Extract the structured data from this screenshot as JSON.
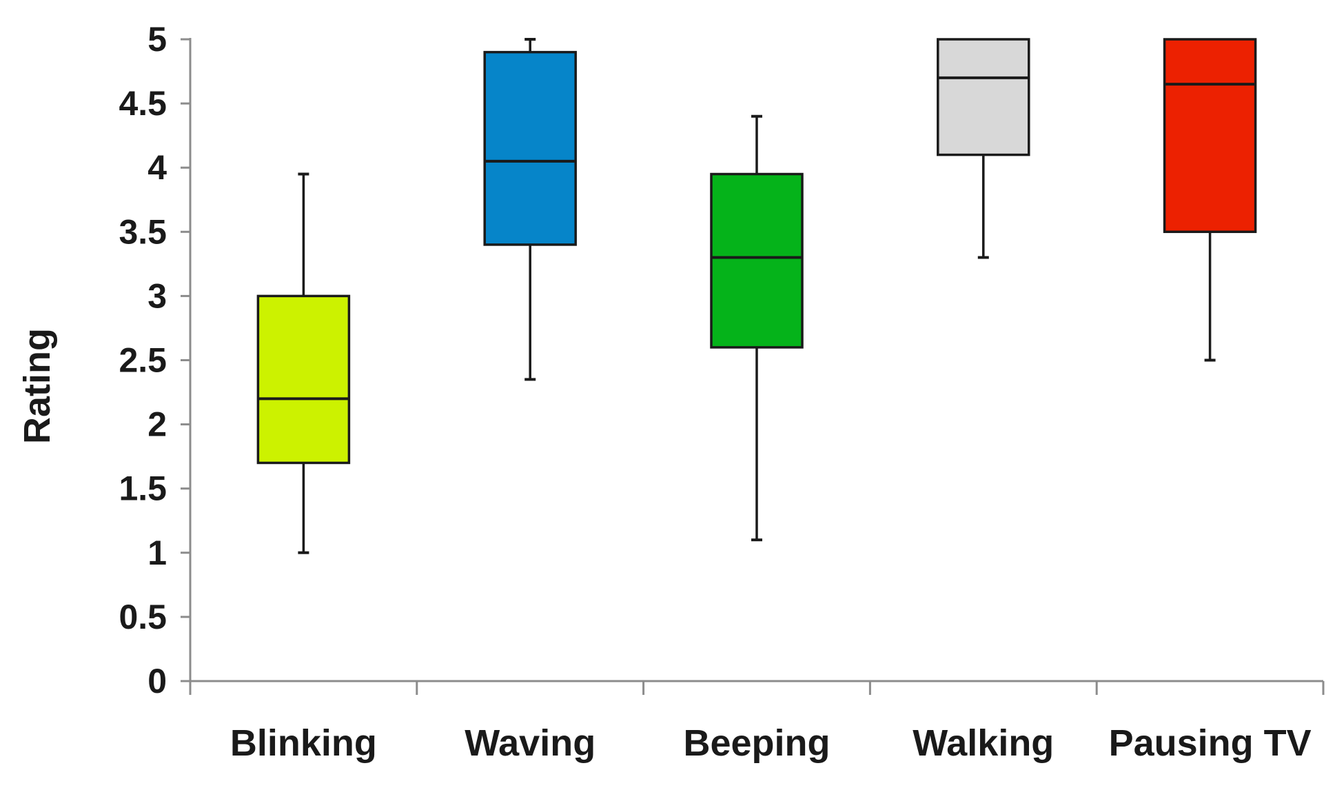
{
  "chart_data": {
    "type": "boxplot",
    "title": "",
    "xlabel": "",
    "ylabel": "Rating",
    "ylim": [
      0,
      5
    ],
    "yticks": [
      "0",
      "0.5",
      "1",
      "1.5",
      "2",
      "2.5",
      "3",
      "3.5",
      "4",
      "4.5",
      "5"
    ],
    "grid": false,
    "categories": [
      "Blinking",
      "Waving",
      "Beeping",
      "Walking",
      "Pausing TV"
    ],
    "boxes": [
      {
        "name": "Blinking",
        "min": 1.0,
        "q1": 1.7,
        "median": 2.2,
        "q3": 3.0,
        "max": 3.95,
        "color": "#ccf200"
      },
      {
        "name": "Waving",
        "min": 2.35,
        "q1": 3.4,
        "median": 4.05,
        "q3": 4.9,
        "max": 5.0,
        "color": "#0685c9"
      },
      {
        "name": "Beeping",
        "min": 1.1,
        "q1": 2.6,
        "median": 3.3,
        "q3": 3.95,
        "max": 4.4,
        "color": "#05b31a"
      },
      {
        "name": "Walking",
        "min": 3.3,
        "q1": 4.1,
        "median": 4.7,
        "q3": 5.0,
        "max": 5.0,
        "color": "#d8d8d8"
      },
      {
        "name": "Pausing TV",
        "min": 2.5,
        "q1": 3.5,
        "median": 4.65,
        "q3": 5.0,
        "max": 5.0,
        "color": "#ec2101"
      }
    ]
  }
}
